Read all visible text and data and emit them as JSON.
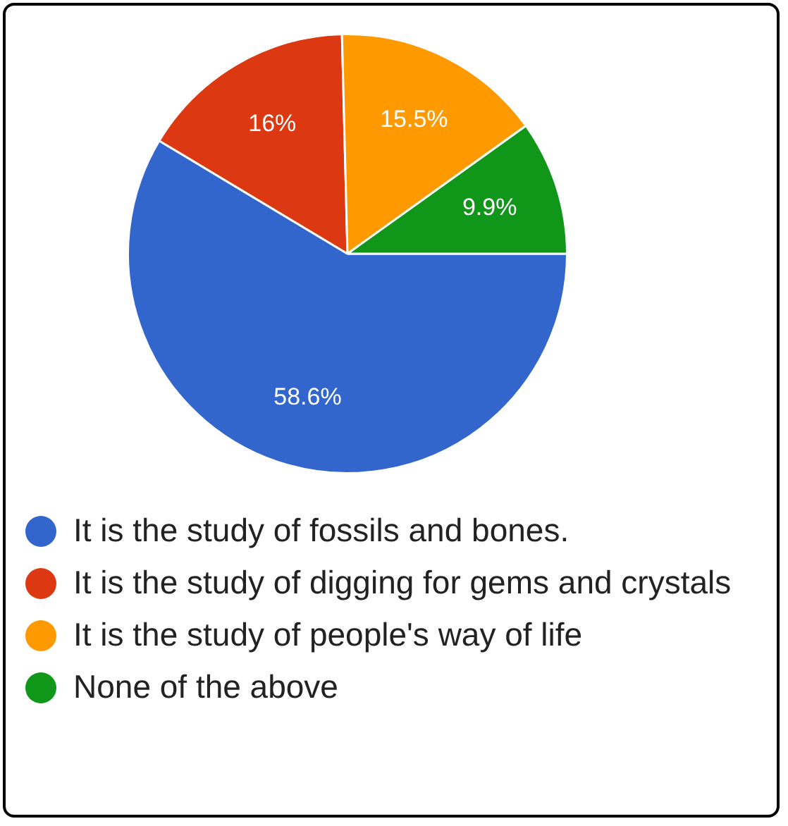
{
  "chart_data": {
    "type": "pie",
    "categories": [
      "It is the study of fossils and bones.",
      "It is the study of digging for gems and crystals",
      "It is the study of people's way of life",
      "None of the above"
    ],
    "values": [
      58.6,
      16,
      15.5,
      9.9
    ],
    "colors": [
      "#3366cc",
      "#dc3912",
      "#ff9900",
      "#109618"
    ],
    "value_labels": [
      "58.6%",
      "16%",
      "15.5%",
      "9.9%"
    ],
    "legend": "bottom"
  }
}
